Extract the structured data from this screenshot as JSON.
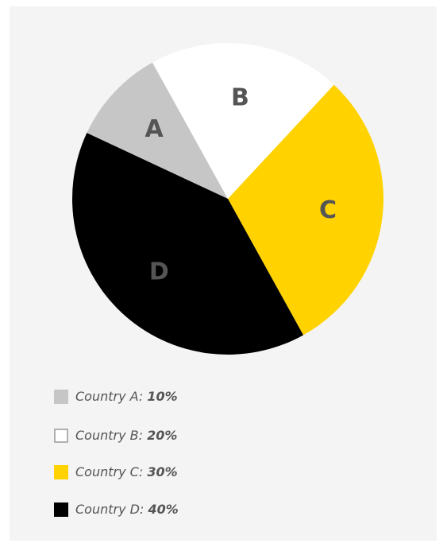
{
  "chart_data": {
    "type": "pie",
    "slice_labels": [
      "A",
      "B",
      "C",
      "D"
    ],
    "legend_labels": [
      "Country A:",
      "Country B:",
      "Country C:",
      "Country D:"
    ],
    "values": [
      10,
      20,
      30,
      40
    ],
    "value_labels": [
      "10%",
      "20%",
      "30%",
      "40%"
    ],
    "colors": [
      "#c6c6c6",
      "#ffffff",
      "#ffd200",
      "#000000"
    ]
  }
}
